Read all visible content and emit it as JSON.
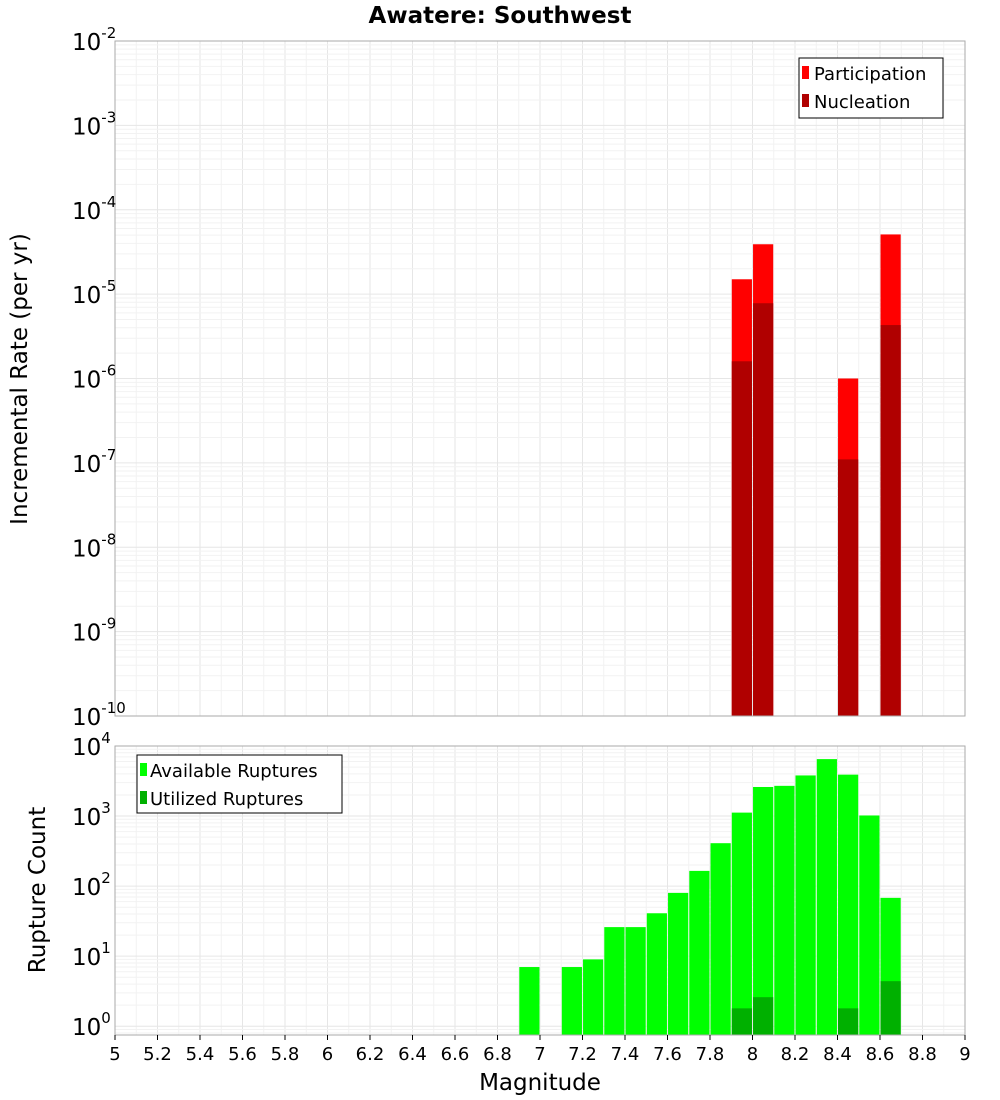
{
  "title": "Awatere: Southwest",
  "colors": {
    "participation": "#ff0000",
    "nucleation": "#b00000",
    "available": "#00ff00",
    "utilized": "#00b000",
    "grid_major": "#e6e6e6",
    "grid_minor": "#f2f2f2",
    "frame": "#aaaaaa"
  },
  "chart_data": [
    {
      "type": "bar",
      "panel": "top",
      "ylabel": "Incremental Rate (per yr)",
      "yscale": "log",
      "ylim": [
        1e-10,
        0.01
      ],
      "xlim": [
        5,
        9
      ],
      "y_tick_exponents": [
        -2,
        -3,
        -4,
        -5,
        -6,
        -7,
        -8,
        -9,
        -10
      ],
      "grid": true,
      "legend_position": "top-right",
      "bar_width": 0.095,
      "series": [
        {
          "name": "Participation",
          "color_key": "participation",
          "x": [
            7.95,
            8.05,
            8.45,
            8.65
          ],
          "values": [
            1.5e-05,
            3.9e-05,
            1e-06,
            5.1e-05
          ]
        },
        {
          "name": "Nucleation",
          "color_key": "nucleation",
          "x": [
            7.95,
            8.05,
            8.45,
            8.65
          ],
          "values": [
            1.6e-06,
            7.8e-06,
            1.1e-07,
            4.3e-06
          ]
        }
      ]
    },
    {
      "type": "bar",
      "panel": "bottom",
      "ylabel": "Rupture Count",
      "xlabel": "Magnitude",
      "yscale": "log",
      "ylim": [
        0.75,
        10000
      ],
      "xlim": [
        5,
        9
      ],
      "y_tick_exponents": [
        4,
        3,
        2,
        1,
        0
      ],
      "x_ticks": [
        "5",
        "5.2",
        "5.4",
        "5.6",
        "5.8",
        "6",
        "6.2",
        "6.4",
        "6.6",
        "6.8",
        "7",
        "7.2",
        "7.4",
        "7.6",
        "7.8",
        "8",
        "8.2",
        "8.4",
        "8.6",
        "8.8",
        "9"
      ],
      "grid": true,
      "legend_position": "top-left",
      "bar_width": 0.095,
      "series": [
        {
          "name": "Available Ruptures",
          "color_key": "available",
          "x": [
            6.95,
            7.15,
            7.25,
            7.35,
            7.45,
            7.55,
            7.65,
            7.75,
            7.85,
            7.95,
            8.05,
            8.15,
            8.25,
            8.35,
            8.45,
            8.55,
            8.65
          ],
          "values": [
            7,
            7,
            9,
            26,
            26,
            41,
            80,
            165,
            410,
            1120,
            2600,
            2700,
            3800,
            6500,
            3900,
            1020,
            68
          ]
        },
        {
          "name": "Utilized Ruptures",
          "color_key": "utilized",
          "x": [
            7.95,
            8.05,
            8.45,
            8.65
          ],
          "values": [
            1.8,
            2.6,
            1.8,
            4.4
          ]
        }
      ]
    }
  ]
}
